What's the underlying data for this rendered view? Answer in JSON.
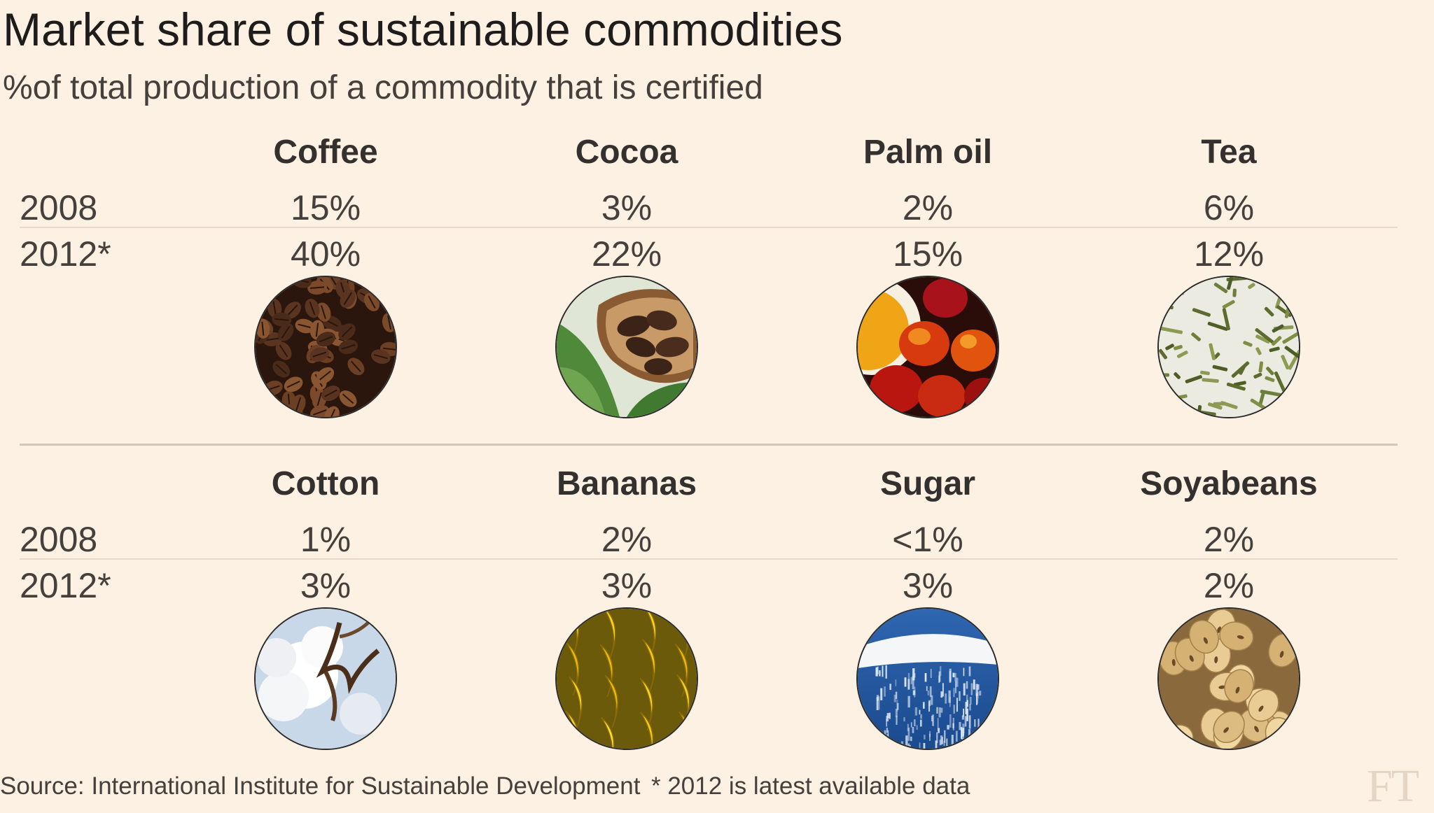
{
  "chart_data": {
    "type": "table",
    "title": "Market share of sustainable commodities",
    "subtitle": "%of total production of a commodity that is certified",
    "row_labels": [
      "2008",
      "2012*"
    ],
    "panels": [
      {
        "commodities": [
          {
            "name": "Coffee",
            "values": [
              "15%",
              "40%"
            ],
            "icon": "coffee-beans-photo"
          },
          {
            "name": "Cocoa",
            "values": [
              "3%",
              "22%"
            ],
            "icon": "cocoa-pod-photo"
          },
          {
            "name": "Palm oil",
            "values": [
              "2%",
              "15%"
            ],
            "icon": "palm-fruit-photo"
          },
          {
            "name": "Tea",
            "values": [
              "6%",
              "12%"
            ],
            "icon": "tea-leaves-photo"
          }
        ]
      },
      {
        "commodities": [
          {
            "name": "Cotton",
            "values": [
              "1%",
              "3%"
            ],
            "icon": "cotton-boll-photo"
          },
          {
            "name": "Bananas",
            "values": [
              "2%",
              "3%"
            ],
            "icon": "bananas-photo"
          },
          {
            "name": "Sugar",
            "values": [
              "<1%",
              "3%"
            ],
            "icon": "sugar-photo"
          },
          {
            "name": "Soyabeans",
            "values": [
              "2%",
              "2%"
            ],
            "icon": "soyabeans-photo"
          }
        ]
      }
    ],
    "source": "Source: International Institute for Sustainable Development",
    "footnote": "* 2012 is latest available data",
    "logo": "FT"
  },
  "colors": {
    "background": "#fdf1e3",
    "text": "#33302e",
    "rule": "#e8d8c6"
  }
}
